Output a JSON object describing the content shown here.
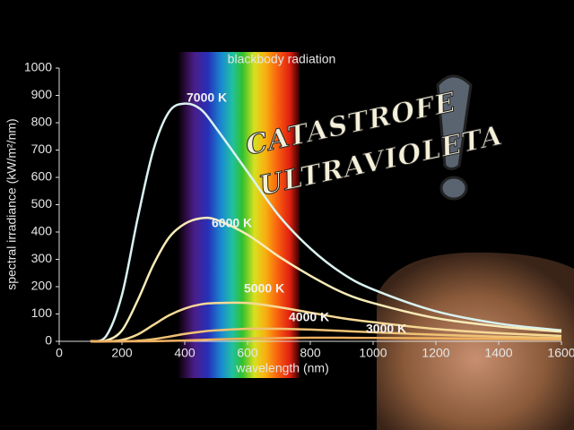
{
  "chart_data": {
    "type": "line",
    "title": "blackbody radiation",
    "x_label": "wavelength (nm)",
    "y_label": "spectral irradiance (kW/m²/nm)",
    "annotations": [
      "CATASTROFE",
      "ULTRAVIOLETA"
    ],
    "x": [
      100,
      150,
      200,
      250,
      300,
      350,
      400,
      450,
      500,
      600,
      700,
      800,
      900,
      1000,
      1200,
      1400,
      1600
    ],
    "series": [
      {
        "name": "7000 K",
        "color": "#d9f2f0",
        "values": [
          0,
          20,
          170,
          450,
          700,
          840,
          870,
          850,
          780,
          620,
          460,
          340,
          250,
          190,
          110,
          65,
          40
        ]
      },
      {
        "name": "6000 K",
        "color": "#f7ebb8",
        "values": [
          0,
          3,
          40,
          150,
          280,
          380,
          430,
          450,
          445,
          390,
          310,
          240,
          180,
          140,
          85,
          55,
          35
        ]
      },
      {
        "name": "5000 K",
        "color": "#f6d995",
        "values": [
          0,
          0,
          5,
          25,
          60,
          95,
          120,
          135,
          140,
          140,
          125,
          105,
          85,
          70,
          45,
          30,
          20
        ]
      },
      {
        "name": "4000 K",
        "color": "#efc274",
        "values": [
          0,
          0,
          0,
          2,
          8,
          17,
          27,
          35,
          40,
          46,
          46,
          43,
          38,
          33,
          24,
          17,
          12
        ]
      },
      {
        "name": "3000 K",
        "color": "#eeb060",
        "values": [
          0,
          0,
          0,
          0,
          0.5,
          1.5,
          3,
          5,
          7,
          10,
          12,
          13,
          13,
          12.5,
          11,
          9,
          7
        ]
      }
    ],
    "xlim": [
      0,
      1600
    ],
    "ylim": [
      0,
      1000
    ],
    "xticks": [
      0,
      200,
      400,
      600,
      800,
      1000,
      1200,
      1400,
      1600
    ],
    "yticks": [
      0,
      100,
      200,
      300,
      400,
      500,
      600,
      700,
      800,
      900,
      1000
    ]
  }
}
